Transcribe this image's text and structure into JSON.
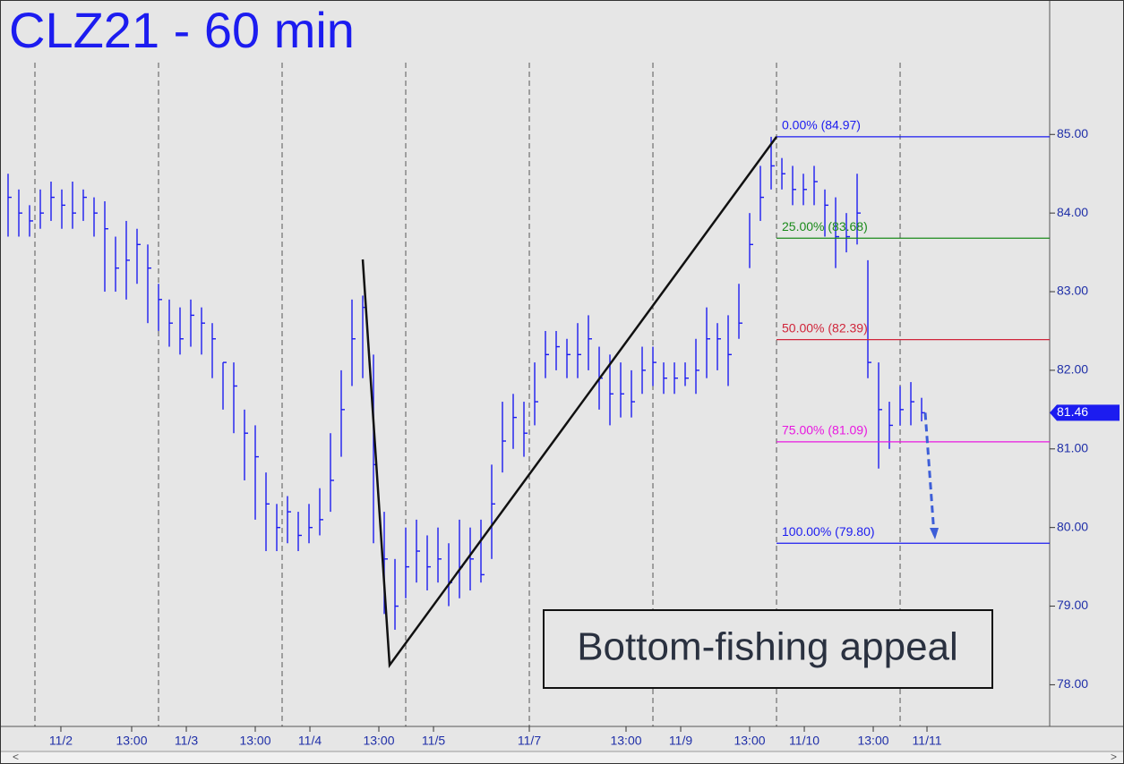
{
  "chart_data": {
    "type": "ohlc",
    "title": "CLZ21 - 60 min",
    "annotation": "Bottom-fishing appeal",
    "color": "#1c1cf0",
    "xlim": [
      0,
      195.33
    ],
    "ylim": [
      77.47,
      86.71
    ],
    "yticks": [
      {
        "value": 78,
        "label": "78.00"
      },
      {
        "value": 79,
        "label": "79.00"
      },
      {
        "value": 80,
        "label": "80.00"
      },
      {
        "value": 81,
        "label": "81.00"
      },
      {
        "value": 82,
        "label": "82.00"
      },
      {
        "value": 83,
        "label": "83.00"
      },
      {
        "value": 84,
        "label": "84.00"
      },
      {
        "value": 85,
        "label": "85.00"
      }
    ],
    "xticks": [
      {
        "value": 11.33,
        "label": "11/2"
      },
      {
        "value": 24.5,
        "label": "13:00"
      },
      {
        "value": 34.67,
        "label": "11/3"
      },
      {
        "value": 47.5,
        "label": "13:00"
      },
      {
        "value": 57.67,
        "label": "11/4"
      },
      {
        "value": 70.5,
        "label": "13:00"
      },
      {
        "value": 80.67,
        "label": "11/5"
      },
      {
        "value": 98.5,
        "label": "11/7"
      },
      {
        "value": 116.5,
        "label": "13:00"
      },
      {
        "value": 126.67,
        "label": "11/9"
      },
      {
        "value": 139.5,
        "label": "13:00"
      },
      {
        "value": 149.67,
        "label": "11/10"
      },
      {
        "value": 162.5,
        "label": "13:00"
      },
      {
        "value": 172.5,
        "label": "11/11"
      }
    ],
    "xgrid": [
      6.5,
      29.5,
      52.5,
      75.5,
      98.5,
      121.5,
      144.5,
      167.5
    ],
    "x": [
      1.5,
      3.5,
      5.5,
      7.5,
      9.5,
      11.5,
      13.5,
      15.5,
      17.5,
      19.5,
      21.5,
      23.5,
      25.5,
      27.5,
      29.5,
      31.5,
      33.5,
      35.5,
      37.5,
      39.5,
      41.5,
      43.5,
      45.5,
      47.5,
      49.5,
      51.5,
      53.5,
      55.5,
      57.5,
      59.5,
      61.5,
      63.5,
      65.5,
      67.5,
      69.5,
      71.5,
      73.5,
      75.5,
      77.5,
      79.5,
      81.5,
      83.5,
      85.5,
      87.5,
      89.5,
      91.5,
      93.5,
      95.5,
      97.5,
      99.5,
      101.5,
      103.5,
      105.5,
      107.5,
      109.5,
      111.5,
      113.5,
      115.5,
      117.5,
      119.5,
      121.5,
      123.5,
      125.5,
      127.5,
      129.5,
      131.5,
      133.5,
      135.5,
      137.5,
      139.5,
      141.5,
      143.5,
      145.5,
      147.5,
      149.5,
      151.5,
      153.5,
      155.5,
      157.5,
      159.5,
      161.5,
      163.5,
      165.5,
      167.5,
      169.5,
      171.5
    ],
    "high": [
      84.5,
      84.3,
      84.1,
      84.3,
      84.4,
      84.3,
      84.4,
      84.3,
      84.2,
      84.15,
      83.7,
      83.9,
      83.8,
      83.6,
      83.1,
      82.9,
      82.8,
      82.9,
      82.8,
      82.6,
      82.1,
      82.1,
      81.5,
      81.3,
      80.7,
      80.3,
      80.4,
      80.2,
      80.3,
      80.5,
      81.2,
      82.0,
      82.9,
      82.95,
      82.2,
      80.2,
      79.6,
      80.0,
      80.1,
      79.9,
      80.0,
      79.8,
      80.1,
      80.0,
      80.1,
      80.8,
      81.6,
      81.7,
      81.6,
      82.1,
      82.5,
      82.5,
      82.4,
      82.6,
      82.7,
      82.3,
      82.2,
      82.1,
      82.0,
      82.3,
      82.3,
      82.1,
      82.1,
      82.1,
      82.4,
      82.8,
      82.6,
      82.7,
      83.1,
      84.0,
      84.6,
      84.97,
      84.7,
      84.6,
      84.5,
      84.6,
      84.3,
      84.2,
      84.0,
      84.5,
      83.4,
      82.1,
      81.6,
      81.8,
      81.85,
      81.65
    ],
    "low": [
      83.7,
      83.7,
      83.7,
      83.8,
      83.9,
      83.8,
      83.8,
      83.9,
      83.7,
      83.0,
      83.0,
      82.9,
      83.1,
      82.6,
      82.5,
      82.3,
      82.2,
      82.3,
      82.2,
      81.9,
      81.5,
      81.2,
      80.6,
      80.1,
      79.7,
      79.7,
      79.8,
      79.7,
      79.8,
      79.9,
      80.2,
      80.9,
      81.8,
      81.9,
      79.8,
      78.9,
      78.7,
      79.1,
      79.3,
      79.2,
      79.3,
      79.0,
      79.1,
      79.2,
      79.3,
      79.6,
      80.7,
      81.0,
      80.9,
      81.3,
      81.9,
      82.0,
      81.9,
      81.9,
      82.0,
      81.5,
      81.3,
      81.4,
      81.4,
      81.7,
      81.8,
      81.7,
      81.7,
      81.8,
      81.7,
      81.9,
      82.0,
      81.8,
      82.4,
      83.3,
      83.9,
      84.3,
      84.3,
      84.1,
      84.1,
      84.1,
      83.7,
      83.3,
      83.5,
      83.6,
      81.9,
      80.75,
      81.0,
      81.3,
      81.3,
      81.35
    ],
    "close": [
      84.2,
      84.0,
      83.9,
      84.0,
      84.2,
      84.1,
      84.0,
      84.2,
      84.0,
      83.8,
      83.3,
      83.4,
      83.6,
      83.3,
      82.9,
      82.6,
      82.4,
      82.7,
      82.6,
      82.4,
      82.1,
      81.8,
      81.2,
      80.9,
      80.3,
      80.0,
      80.2,
      79.9,
      80.0,
      80.1,
      80.6,
      81.5,
      82.4,
      82.8,
      80.8,
      79.6,
      79.0,
      79.5,
      79.7,
      79.5,
      79.6,
      79.3,
      79.5,
      79.6,
      79.4,
      80.3,
      81.1,
      81.4,
      81.2,
      81.6,
      82.2,
      82.3,
      82.2,
      82.2,
      82.4,
      81.9,
      81.7,
      81.7,
      81.6,
      82.0,
      82.1,
      81.9,
      81.9,
      81.9,
      82.0,
      82.4,
      82.4,
      82.2,
      82.6,
      83.6,
      84.2,
      84.6,
      84.5,
      84.3,
      84.3,
      84.4,
      84.1,
      83.7,
      83.7,
      84.0,
      82.1,
      81.5,
      81.3,
      81.5,
      81.6,
      81.46
    ],
    "last_price": 81.46,
    "zigzag": {
      "x": [
        67.5,
        72.5,
        144.5
      ],
      "values": [
        83.41,
        78.25,
        84.97
      ]
    },
    "fib_levels": [
      {
        "label": "0.00% (84.97)",
        "value": 84.97,
        "color": "#1c1cf0"
      },
      {
        "label": "25.00% (83.68)",
        "value": 83.68,
        "color": "#1a8a1a"
      },
      {
        "label": "50.00% (82.39)",
        "value": 82.39,
        "color": "#d0253a"
      },
      {
        "label": "75.00% (81.09)",
        "value": 81.09,
        "color": "#e818e0"
      },
      {
        "label": "100.00% (79.80)",
        "value": 79.8,
        "color": "#1c1cf0"
      }
    ]
  }
}
